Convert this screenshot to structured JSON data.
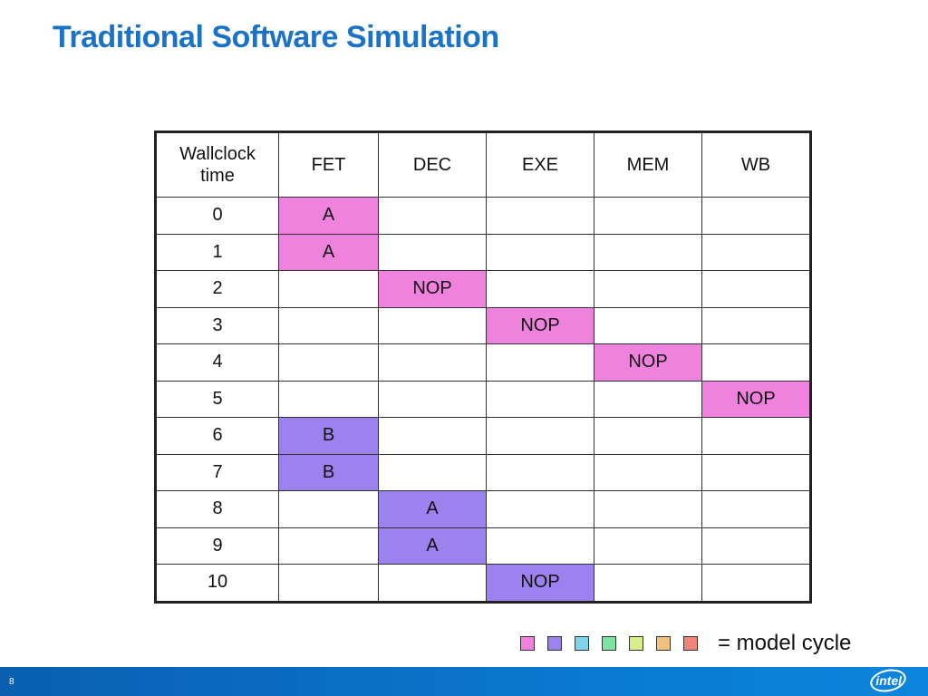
{
  "title": "Traditional Software Simulation",
  "table": {
    "headers": [
      "Wallclock time",
      "FET",
      "DEC",
      "EXE",
      "MEM",
      "WB"
    ],
    "rows": [
      {
        "time": "0",
        "cells": [
          {
            "text": "A",
            "color": "pink"
          },
          {
            "text": "",
            "color": ""
          },
          {
            "text": "",
            "color": ""
          },
          {
            "text": "",
            "color": ""
          },
          {
            "text": "",
            "color": ""
          }
        ]
      },
      {
        "time": "1",
        "cells": [
          {
            "text": "A",
            "color": "pink"
          },
          {
            "text": "",
            "color": ""
          },
          {
            "text": "",
            "color": ""
          },
          {
            "text": "",
            "color": ""
          },
          {
            "text": "",
            "color": ""
          }
        ]
      },
      {
        "time": "2",
        "cells": [
          {
            "text": "",
            "color": ""
          },
          {
            "text": "NOP",
            "color": "pink"
          },
          {
            "text": "",
            "color": ""
          },
          {
            "text": "",
            "color": ""
          },
          {
            "text": "",
            "color": ""
          }
        ]
      },
      {
        "time": "3",
        "cells": [
          {
            "text": "",
            "color": ""
          },
          {
            "text": "",
            "color": ""
          },
          {
            "text": "NOP",
            "color": "pink"
          },
          {
            "text": "",
            "color": ""
          },
          {
            "text": "",
            "color": ""
          }
        ]
      },
      {
        "time": "4",
        "cells": [
          {
            "text": "",
            "color": ""
          },
          {
            "text": "",
            "color": ""
          },
          {
            "text": "",
            "color": ""
          },
          {
            "text": "NOP",
            "color": "pink"
          },
          {
            "text": "",
            "color": ""
          }
        ]
      },
      {
        "time": "5",
        "cells": [
          {
            "text": "",
            "color": ""
          },
          {
            "text": "",
            "color": ""
          },
          {
            "text": "",
            "color": ""
          },
          {
            "text": "",
            "color": ""
          },
          {
            "text": "NOP",
            "color": "pink"
          }
        ]
      },
      {
        "time": "6",
        "cells": [
          {
            "text": "B",
            "color": "purple"
          },
          {
            "text": "",
            "color": ""
          },
          {
            "text": "",
            "color": ""
          },
          {
            "text": "",
            "color": ""
          },
          {
            "text": "",
            "color": ""
          }
        ]
      },
      {
        "time": "7",
        "cells": [
          {
            "text": "B",
            "color": "purple"
          },
          {
            "text": "",
            "color": ""
          },
          {
            "text": "",
            "color": ""
          },
          {
            "text": "",
            "color": ""
          },
          {
            "text": "",
            "color": ""
          }
        ]
      },
      {
        "time": "8",
        "cells": [
          {
            "text": "",
            "color": ""
          },
          {
            "text": "A",
            "color": "purple"
          },
          {
            "text": "",
            "color": ""
          },
          {
            "text": "",
            "color": ""
          },
          {
            "text": "",
            "color": ""
          }
        ]
      },
      {
        "time": "9",
        "cells": [
          {
            "text": "",
            "color": ""
          },
          {
            "text": "A",
            "color": "purple"
          },
          {
            "text": "",
            "color": ""
          },
          {
            "text": "",
            "color": ""
          },
          {
            "text": "",
            "color": ""
          }
        ]
      },
      {
        "time": "10",
        "cells": [
          {
            "text": "",
            "color": ""
          },
          {
            "text": "",
            "color": ""
          },
          {
            "text": "NOP",
            "color": "purple"
          },
          {
            "text": "",
            "color": ""
          },
          {
            "text": "",
            "color": ""
          }
        ]
      }
    ]
  },
  "colors": {
    "pink": "#ee82dd",
    "purple": "#9b82ee",
    "title": "#1a73c6",
    "footer": "#0a78d0"
  },
  "legend": {
    "swatches": [
      "#ee82dd",
      "#9b82ee",
      "#7fd3ea",
      "#7fe3a2",
      "#d8ee88",
      "#eec27f",
      "#ee8578"
    ],
    "label": "= model cycle"
  },
  "footer": {
    "page_number": "8",
    "logo_text": "intel",
    "logo_icon": "intel-logo-icon"
  }
}
